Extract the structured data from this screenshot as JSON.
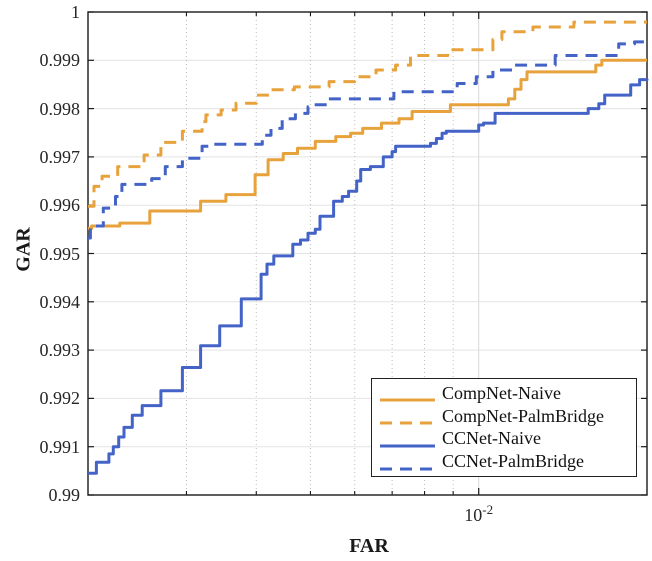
{
  "chart_data": {
    "type": "line",
    "title": "",
    "xlabel": "FAR",
    "ylabel": "GAR",
    "x_scale": "log",
    "xlim": [
      0.002,
      0.02
    ],
    "ylim": [
      0.99,
      1.0
    ],
    "grid": true,
    "legend_position": "bottom-right",
    "ytick_values": [
      0.99,
      0.991,
      0.992,
      0.993,
      0.994,
      0.995,
      0.996,
      0.997,
      0.998,
      0.999,
      1.0
    ],
    "ytick_labels": [
      "0.99",
      "0.991",
      "0.992",
      "0.993",
      "0.994",
      "0.995",
      "0.996",
      "0.997",
      "0.998",
      "0.999",
      "1"
    ],
    "x_major_tick": {
      "value": 0.01,
      "base": "10",
      "exponent": "-2"
    },
    "x_minor_gridlines": [
      0.003,
      0.004,
      0.005,
      0.006,
      0.007,
      0.008,
      0.009
    ],
    "series": [
      {
        "name": "CompNet-Naive",
        "color": "#E8A23C",
        "dash": "solid",
        "points": [
          [
            0.002,
            0.99552
          ],
          [
            0.00203,
            0.99557
          ],
          [
            0.00228,
            0.99563
          ],
          [
            0.00258,
            0.99588
          ],
          [
            0.00318,
            0.99608
          ],
          [
            0.00353,
            0.99622
          ],
          [
            0.00398,
            0.99663
          ],
          [
            0.0042,
            0.99694
          ],
          [
            0.00447,
            0.99707
          ],
          [
            0.00474,
            0.99718
          ],
          [
            0.0051,
            0.99732
          ],
          [
            0.00555,
            0.99742
          ],
          [
            0.0059,
            0.99749
          ],
          [
            0.0062,
            0.99759
          ],
          [
            0.0067,
            0.9977
          ],
          [
            0.0072,
            0.99779
          ],
          [
            0.0076,
            0.99794
          ],
          [
            0.0089,
            0.99808
          ],
          [
            0.0113,
            0.9982
          ],
          [
            0.0116,
            0.9984
          ],
          [
            0.0119,
            0.9986
          ],
          [
            0.0122,
            0.99876
          ],
          [
            0.0162,
            0.9989
          ],
          [
            0.0166,
            0.999
          ],
          [
            0.02,
            0.999
          ]
        ]
      },
      {
        "name": "CompNet-PalmBridge",
        "color": "#E8A23C",
        "dash": "dashed",
        "points": [
          [
            0.002,
            0.99598
          ],
          [
            0.00205,
            0.99639
          ],
          [
            0.00212,
            0.9966
          ],
          [
            0.00226,
            0.9968
          ],
          [
            0.00252,
            0.99704
          ],
          [
            0.0027,
            0.9973
          ],
          [
            0.00295,
            0.99753
          ],
          [
            0.0032,
            0.99773
          ],
          [
            0.00325,
            0.99787
          ],
          [
            0.00346,
            0.99797
          ],
          [
            0.00368,
            0.99811
          ],
          [
            0.004,
            0.99828
          ],
          [
            0.00425,
            0.99839
          ],
          [
            0.00468,
            0.99845
          ],
          [
            0.0054,
            0.99856
          ],
          [
            0.006,
            0.99866
          ],
          [
            0.00655,
            0.9988
          ],
          [
            0.0071,
            0.9989
          ],
          [
            0.00755,
            0.9991
          ],
          [
            0.0088,
            0.99922
          ],
          [
            0.0106,
            0.99943
          ],
          [
            0.011,
            0.99959
          ],
          [
            0.0125,
            0.99969
          ],
          [
            0.0148,
            0.99979
          ],
          [
            0.02,
            0.99979
          ]
        ]
      },
      {
        "name": "CCNet-Naive",
        "color": "#4463C7",
        "dash": "solid",
        "points": [
          [
            0.002,
            0.99045
          ],
          [
            0.00207,
            0.99068
          ],
          [
            0.00218,
            0.99085
          ],
          [
            0.00222,
            0.991
          ],
          [
            0.00227,
            0.9912
          ],
          [
            0.00232,
            0.9914
          ],
          [
            0.0024,
            0.99165
          ],
          [
            0.0025,
            0.99185
          ],
          [
            0.0027,
            0.99216
          ],
          [
            0.00295,
            0.99264
          ],
          [
            0.00318,
            0.99309
          ],
          [
            0.00344,
            0.9935
          ],
          [
            0.00376,
            0.99406
          ],
          [
            0.00408,
            0.99457
          ],
          [
            0.00418,
            0.99478
          ],
          [
            0.0043,
            0.99495
          ],
          [
            0.00465,
            0.99519
          ],
          [
            0.0048,
            0.99528
          ],
          [
            0.00495,
            0.99542
          ],
          [
            0.0051,
            0.9955
          ],
          [
            0.0052,
            0.99577
          ],
          [
            0.0055,
            0.99608
          ],
          [
            0.0057,
            0.99618
          ],
          [
            0.00585,
            0.99629
          ],
          [
            0.00605,
            0.9965
          ],
          [
            0.00615,
            0.99674
          ],
          [
            0.0064,
            0.9968
          ],
          [
            0.00675,
            0.997
          ],
          [
            0.007,
            0.99711
          ],
          [
            0.0071,
            0.99722
          ],
          [
            0.0082,
            0.99728
          ],
          [
            0.0084,
            0.99738
          ],
          [
            0.0086,
            0.99749
          ],
          [
            0.00875,
            0.99753
          ],
          [
            0.01,
            0.99766
          ],
          [
            0.0102,
            0.9977
          ],
          [
            0.0107,
            0.9979
          ],
          [
            0.0157,
            0.998
          ],
          [
            0.0164,
            0.9981
          ],
          [
            0.0168,
            0.99828
          ],
          [
            0.0187,
            0.99849
          ],
          [
            0.0194,
            0.9986
          ],
          [
            0.02,
            0.99862
          ]
        ]
      },
      {
        "name": "CCNet-PalmBridge",
        "color": "#4463C7",
        "dash": "dashed",
        "points": [
          [
            0.002,
            0.99532
          ],
          [
            0.00202,
            0.99557
          ],
          [
            0.00213,
            0.99594
          ],
          [
            0.00224,
            0.99618
          ],
          [
            0.0023,
            0.99643
          ],
          [
            0.0026,
            0.99655
          ],
          [
            0.00275,
            0.9968
          ],
          [
            0.00295,
            0.99697
          ],
          [
            0.0032,
            0.99722
          ],
          [
            0.00336,
            0.99726
          ],
          [
            0.0041,
            0.99745
          ],
          [
            0.00425,
            0.99759
          ],
          [
            0.00445,
            0.99779
          ],
          [
            0.0047,
            0.9979
          ],
          [
            0.00495,
            0.99804
          ],
          [
            0.00507,
            0.99808
          ],
          [
            0.00535,
            0.9982
          ],
          [
            0.00705,
            0.99835
          ],
          [
            0.00915,
            0.99852
          ],
          [
            0.0099,
            0.99866
          ],
          [
            0.0106,
            0.9988
          ],
          [
            0.0116,
            0.9989
          ],
          [
            0.0137,
            0.9991
          ],
          [
            0.0178,
            0.99934
          ],
          [
            0.019,
            0.99938
          ],
          [
            0.02,
            0.99938
          ]
        ]
      }
    ],
    "style": {
      "axis_color": "#1a1a1a",
      "h_grid_color": "#e3e3e3",
      "v_minor_grid_color": "#bdbdbd",
      "v_major_grid_color": "#d8d8d8",
      "line_width": 3
    }
  }
}
